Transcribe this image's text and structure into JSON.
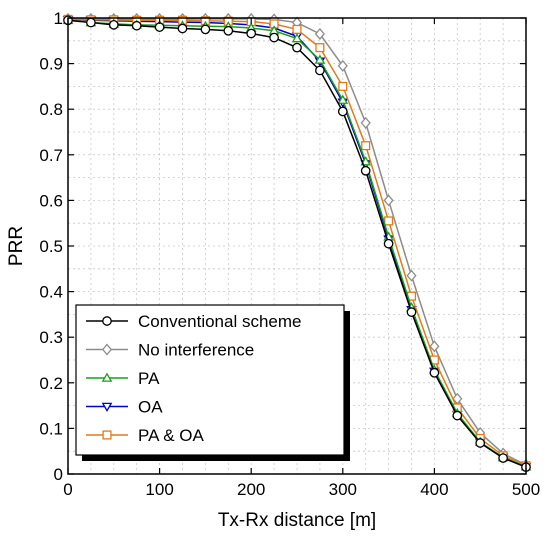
{
  "chart_data": {
    "type": "line",
    "xlabel": "Tx-Rx distance [m]",
    "ylabel": "PRR",
    "xlim": [
      0,
      500
    ],
    "ylim": [
      0,
      1
    ],
    "x_ticks": [
      0,
      100,
      200,
      300,
      400,
      500
    ],
    "y_ticks": [
      0,
      0.1,
      0.2,
      0.3,
      0.4,
      0.5,
      0.6,
      0.7,
      0.8,
      0.9,
      1
    ],
    "x_tick_labels": [
      "0",
      "100",
      "200",
      "300",
      "400",
      "500"
    ],
    "y_tick_labels": [
      "0",
      "0.1",
      "0.2",
      "0.3",
      "0.4",
      "0.5",
      "0.6",
      "0.7",
      "0.8",
      "0.9",
      "1"
    ],
    "grid": true,
    "legend_position": "lower-left",
    "x": [
      0,
      25,
      50,
      75,
      100,
      125,
      150,
      175,
      200,
      225,
      250,
      275,
      300,
      325,
      350,
      375,
      400,
      425,
      450,
      475,
      500
    ],
    "series": [
      {
        "name": "Conventional scheme",
        "color": "#000000",
        "marker": "circle",
        "values": [
          0.995,
          0.99,
          0.985,
          0.983,
          0.98,
          0.977,
          0.975,
          0.972,
          0.966,
          0.957,
          0.935,
          0.885,
          0.795,
          0.665,
          0.505,
          0.355,
          0.222,
          0.128,
          0.068,
          0.035,
          0.015
        ]
      },
      {
        "name": "No interference",
        "color": "#8c8c8c",
        "marker": "diamond",
        "values": [
          0.998,
          0.998,
          0.998,
          0.998,
          0.998,
          0.998,
          0.998,
          0.998,
          0.998,
          0.997,
          0.99,
          0.965,
          0.895,
          0.77,
          0.6,
          0.435,
          0.28,
          0.165,
          0.09,
          0.045,
          0.02
        ]
      },
      {
        "name": "PA",
        "color": "#1b9e1b",
        "marker": "triangle-up",
        "values": [
          0.995,
          0.99,
          0.987,
          0.985,
          0.984,
          0.983,
          0.982,
          0.981,
          0.978,
          0.972,
          0.955,
          0.908,
          0.82,
          0.685,
          0.52,
          0.365,
          0.228,
          0.133,
          0.07,
          0.036,
          0.016
        ]
      },
      {
        "name": "OA",
        "color": "#0000cc",
        "marker": "triangle-down",
        "values": [
          0.996,
          0.995,
          0.994,
          0.993,
          0.992,
          0.991,
          0.99,
          0.988,
          0.985,
          0.978,
          0.96,
          0.905,
          0.815,
          0.68,
          0.515,
          0.36,
          0.225,
          0.13,
          0.069,
          0.036,
          0.016
        ]
      },
      {
        "name": "PA & OA",
        "color": "#e07b1a",
        "marker": "square",
        "values": [
          0.997,
          0.996,
          0.996,
          0.995,
          0.995,
          0.995,
          0.994,
          0.993,
          0.992,
          0.987,
          0.975,
          0.935,
          0.85,
          0.72,
          0.555,
          0.39,
          0.25,
          0.145,
          0.078,
          0.04,
          0.018
        ]
      }
    ]
  }
}
